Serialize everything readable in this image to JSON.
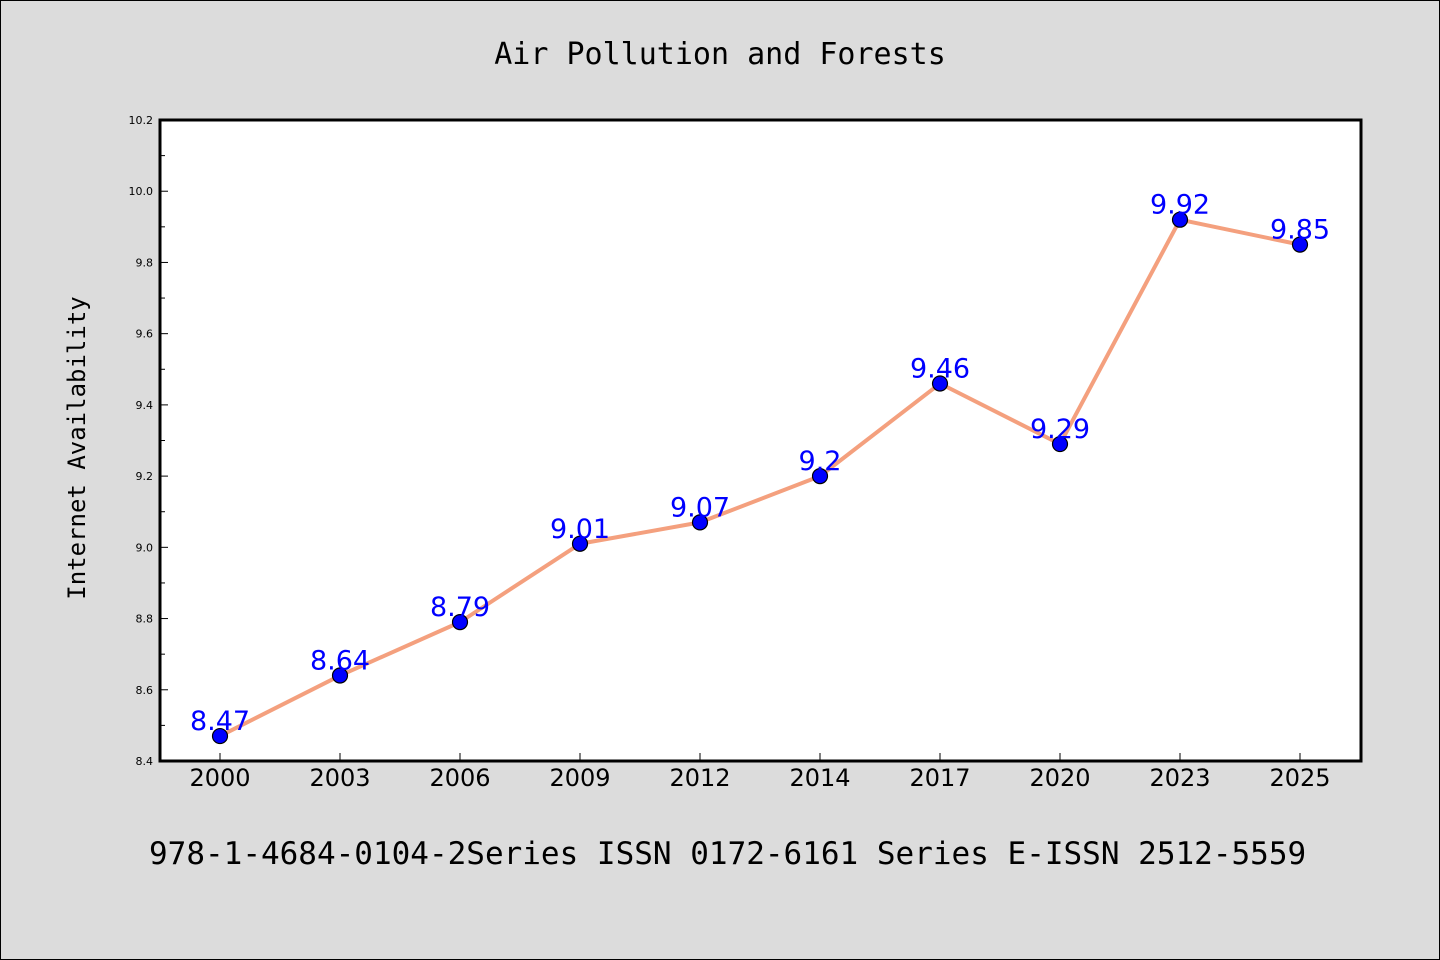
{
  "chart_data": {
    "type": "line",
    "title": "Air Pollution and Forests",
    "xlabel": "",
    "ylabel": "Internet Availability",
    "categories": [
      "2000",
      "2003",
      "2006",
      "2009",
      "2012",
      "2014",
      "2017",
      "2020",
      "2023",
      "2025"
    ],
    "series": [
      {
        "values": [
          8.47,
          8.64,
          8.79,
          9.01,
          9.07,
          9.2,
          9.46,
          9.29,
          9.92,
          9.85
        ],
        "data_labels": [
          "8.47",
          "8.64",
          "8.79",
          "9.01",
          "9.07",
          "9.2",
          "9.46",
          "9.29",
          "9.92",
          "9.85"
        ],
        "line_color": "#f4a07e",
        "marker_color": "#0000ff"
      }
    ],
    "ylim": [
      8.4,
      10.2
    ],
    "yticks": [
      "8.4",
      "8.6",
      "8.8",
      "9.0",
      "9.2",
      "9.4",
      "9.6",
      "9.8",
      "10.0",
      "10.2"
    ],
    "grid": false,
    "label_color": "#0000ff"
  },
  "footer": {
    "text": "978-1-4684-0104-2Series ISSN 0172-6161 Series E-ISSN 2512-5559"
  }
}
